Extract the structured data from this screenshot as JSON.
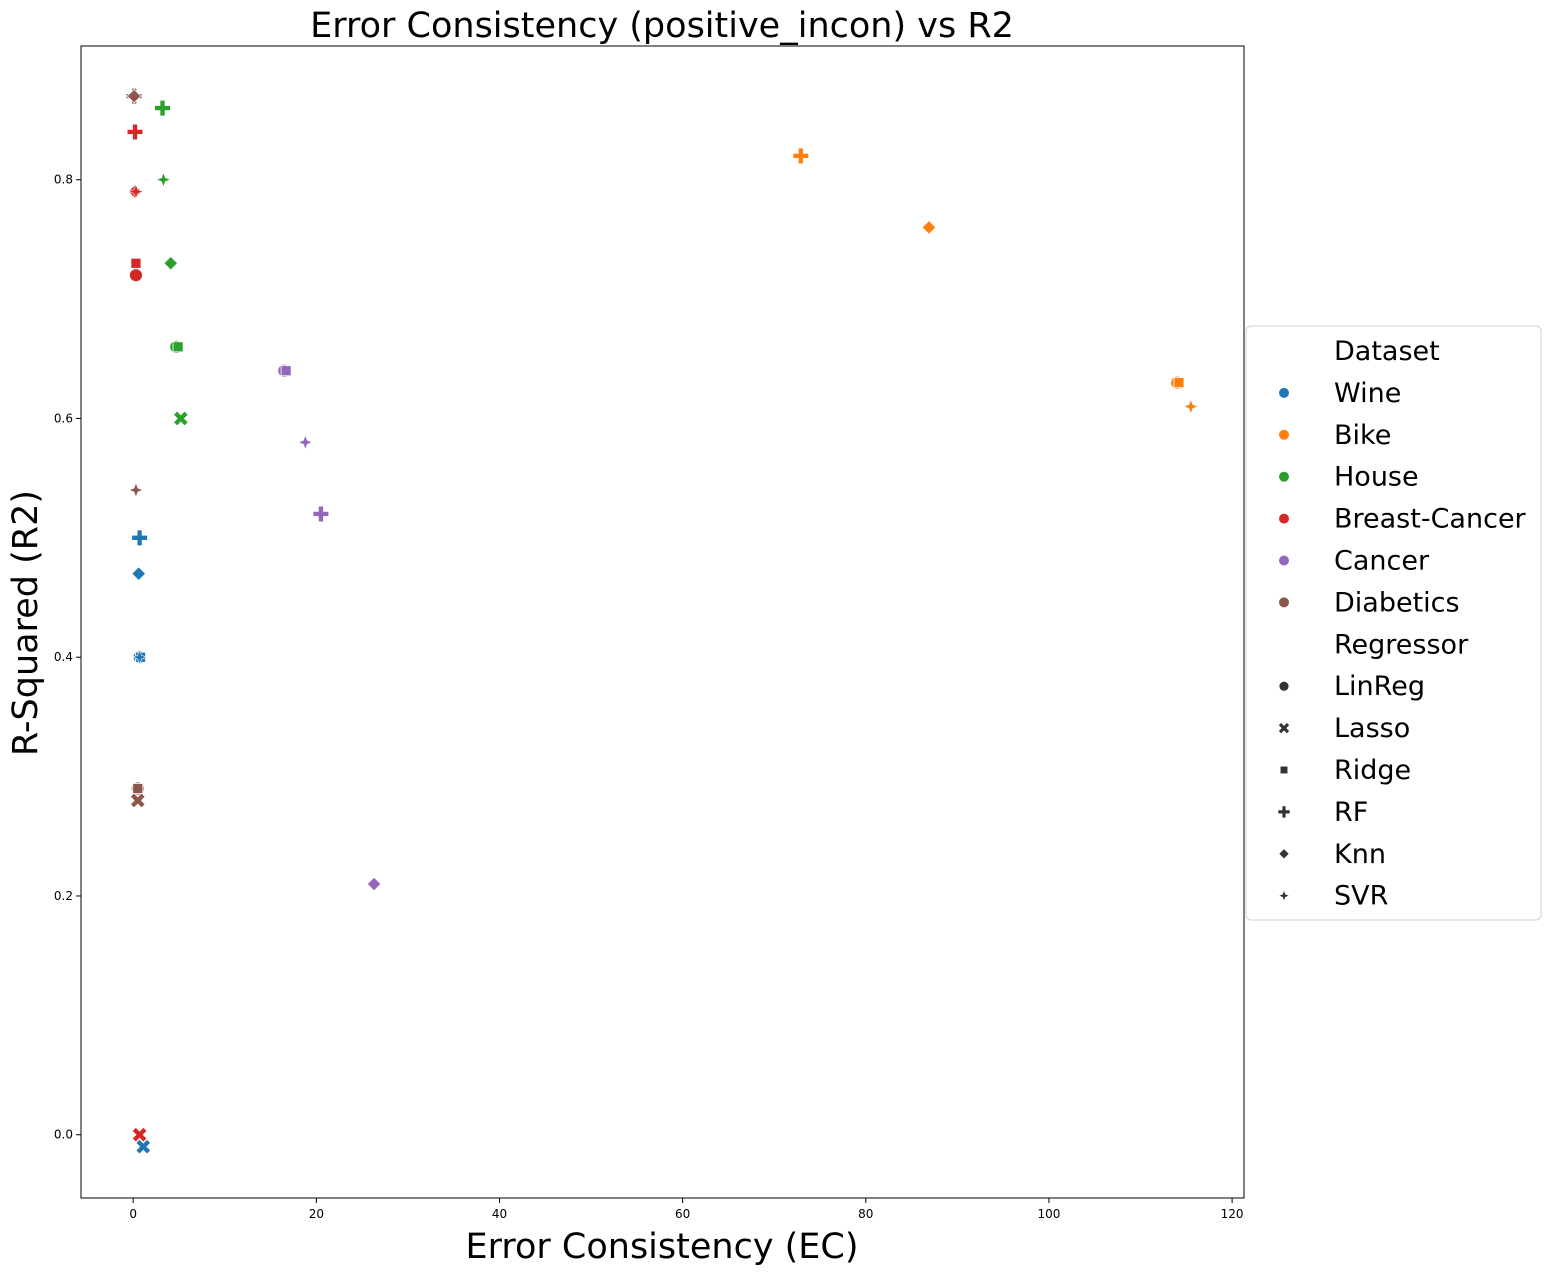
{
  "chart_data": {
    "type": "scatter",
    "title": "Error Consistency (positive_incon) vs R2",
    "xlabel": "Error Consistency (EC)",
    "ylabel": "R-Squared (R2)",
    "xlim": [
      -5.7,
      121.3
    ],
    "ylim": [
      -0.053,
      0.912
    ],
    "xticks": [
      0,
      20,
      40,
      60,
      80,
      100,
      120
    ],
    "yticks": [
      0.0,
      0.2,
      0.4,
      0.6,
      0.8
    ],
    "xtick_labels": [
      "0",
      "20",
      "40",
      "60",
      "80",
      "100",
      "120"
    ],
    "ytick_labels": [
      "0.0",
      "0.2",
      "0.4",
      "0.6",
      "0.8"
    ],
    "grid": false,
    "legend_position": "right, outside plot",
    "legend": {
      "dataset_title": "Dataset",
      "regressor_title": "Regressor",
      "datasets": [
        {
          "name": "Wine",
          "color": "#1f77b4"
        },
        {
          "name": "Bike",
          "color": "#ff7f0e"
        },
        {
          "name": "House",
          "color": "#2ca02c"
        },
        {
          "name": "Breast-Cancer",
          "color": "#d62728"
        },
        {
          "name": "Cancer",
          "color": "#9467bd"
        },
        {
          "name": "Diabetics",
          "color": "#8c564b"
        }
      ],
      "regressors": [
        {
          "name": "LinReg",
          "marker": "circle"
        },
        {
          "name": "Lasso",
          "marker": "x"
        },
        {
          "name": "Ridge",
          "marker": "square"
        },
        {
          "name": "RF",
          "marker": "plus"
        },
        {
          "name": "Knn",
          "marker": "diamond"
        },
        {
          "name": "SVR",
          "marker": "star4"
        }
      ]
    },
    "points": [
      {
        "dataset": "Wine",
        "regressor": "LinReg",
        "x": 0.7,
        "y": 0.4
      },
      {
        "dataset": "Wine",
        "regressor": "Lasso",
        "x": 1.1,
        "y": -0.01
      },
      {
        "dataset": "Wine",
        "regressor": "Ridge",
        "x": 0.8,
        "y": 0.4
      },
      {
        "dataset": "Wine",
        "regressor": "RF",
        "x": 0.7,
        "y": 0.5
      },
      {
        "dataset": "Wine",
        "regressor": "Knn",
        "x": 0.6,
        "y": 0.47
      },
      {
        "dataset": "Wine",
        "regressor": "SVR",
        "x": 0.7,
        "y": 0.4
      },
      {
        "dataset": "Bike",
        "regressor": "LinReg",
        "x": 114.0,
        "y": 0.63
      },
      {
        "dataset": "Bike",
        "regressor": "Ridge",
        "x": 114.2,
        "y": 0.63
      },
      {
        "dataset": "Bike",
        "regressor": "RF",
        "x": 72.9,
        "y": 0.82
      },
      {
        "dataset": "Bike",
        "regressor": "Knn",
        "x": 86.9,
        "y": 0.76
      },
      {
        "dataset": "Bike",
        "regressor": "SVR",
        "x": 115.5,
        "y": 0.61
      },
      {
        "dataset": "House",
        "regressor": "LinReg",
        "x": 4.7,
        "y": 0.66
      },
      {
        "dataset": "House",
        "regressor": "Lasso",
        "x": 5.2,
        "y": 0.6
      },
      {
        "dataset": "House",
        "regressor": "Ridge",
        "x": 4.9,
        "y": 0.66
      },
      {
        "dataset": "House",
        "regressor": "RF",
        "x": 3.2,
        "y": 0.86
      },
      {
        "dataset": "House",
        "regressor": "Knn",
        "x": 4.1,
        "y": 0.73
      },
      {
        "dataset": "House",
        "regressor": "SVR",
        "x": 3.3,
        "y": 0.8
      },
      {
        "dataset": "Breast-Cancer",
        "regressor": "LinReg",
        "x": 0.3,
        "y": 0.72
      },
      {
        "dataset": "Breast-Cancer",
        "regressor": "Lasso",
        "x": 0.7,
        "y": 0.0
      },
      {
        "dataset": "Breast-Cancer",
        "regressor": "Ridge",
        "x": 0.3,
        "y": 0.73
      },
      {
        "dataset": "Breast-Cancer",
        "regressor": "RF",
        "x": 0.2,
        "y": 0.84
      },
      {
        "dataset": "Breast-Cancer",
        "regressor": "Knn",
        "x": 0.2,
        "y": 0.79
      },
      {
        "dataset": "Breast-Cancer",
        "regressor": "SVR",
        "x": 0.3,
        "y": 0.79
      },
      {
        "dataset": "Cancer",
        "regressor": "LinReg",
        "x": 16.5,
        "y": 0.64
      },
      {
        "dataset": "Cancer",
        "regressor": "Ridge",
        "x": 16.7,
        "y": 0.64
      },
      {
        "dataset": "Cancer",
        "regressor": "RF",
        "x": 20.5,
        "y": 0.52
      },
      {
        "dataset": "Cancer",
        "regressor": "Knn",
        "x": 26.3,
        "y": 0.21
      },
      {
        "dataset": "Cancer",
        "regressor": "SVR",
        "x": 18.8,
        "y": 0.58
      },
      {
        "dataset": "Diabetics",
        "regressor": "LinReg",
        "x": 0.5,
        "y": 0.29
      },
      {
        "dataset": "Diabetics",
        "regressor": "Lasso",
        "x": 0.5,
        "y": 0.28
      },
      {
        "dataset": "Diabetics",
        "regressor": "Ridge",
        "x": 0.5,
        "y": 0.29
      },
      {
        "dataset": "Diabetics",
        "regressor": "RF",
        "x": 0.1,
        "y": 0.87
      },
      {
        "dataset": "Diabetics",
        "regressor": "Knn",
        "x": 0.1,
        "y": 0.87
      },
      {
        "dataset": "Diabetics",
        "regressor": "SVR",
        "x": 0.3,
        "y": 0.54
      }
    ]
  }
}
